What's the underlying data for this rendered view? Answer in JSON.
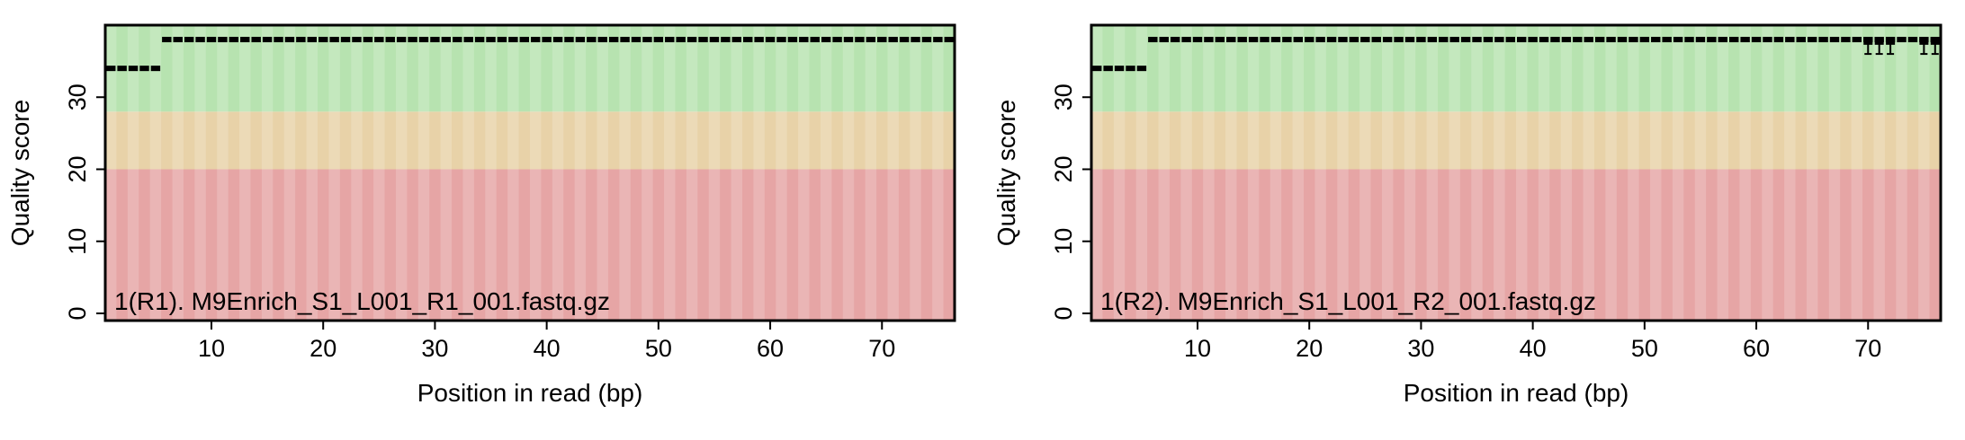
{
  "chart_data": [
    {
      "type": "box",
      "title": "1(R1). M9Enrich_S1_L001_R1_001.fastq.gz",
      "xlabel": "Position in read (bp)",
      "ylabel": "Quality score",
      "xlim": [
        0.5,
        76.5
      ],
      "ylim": [
        -1,
        40
      ],
      "xticks": [
        10,
        20,
        30,
        40,
        50,
        60,
        70
      ],
      "yticks": [
        0,
        10,
        20,
        30
      ],
      "bands": [
        {
          "from": 0,
          "to": 20,
          "color": "#e6a5a5"
        },
        {
          "from": 20,
          "to": 28,
          "color": "#e8d2a8"
        },
        {
          "from": 28,
          "to": 40,
          "color": "#b7e3b0"
        }
      ],
      "positions": {
        "start": 1,
        "end": 76
      },
      "median_segments": [
        {
          "from": 1,
          "to": 5,
          "value": 34
        },
        {
          "from": 6,
          "to": 76,
          "value": 38
        }
      ],
      "whiskers": []
    },
    {
      "type": "box",
      "title": "1(R2). M9Enrich_S1_L001_R2_001.fastq.gz",
      "xlabel": "Position in read (bp)",
      "ylabel": "Quality score",
      "xlim": [
        0.5,
        76.5
      ],
      "ylim": [
        -1,
        40
      ],
      "xticks": [
        10,
        20,
        30,
        40,
        50,
        60,
        70
      ],
      "yticks": [
        0,
        10,
        20,
        30
      ],
      "bands": [
        {
          "from": 0,
          "to": 20,
          "color": "#e6a5a5"
        },
        {
          "from": 20,
          "to": 28,
          "color": "#e8d2a8"
        },
        {
          "from": 28,
          "to": 40,
          "color": "#b7e3b0"
        }
      ],
      "positions": {
        "start": 1,
        "end": 76
      },
      "median_segments": [
        {
          "from": 1,
          "to": 5,
          "value": 34
        },
        {
          "from": 6,
          "to": 76,
          "value": 38
        }
      ],
      "whiskers": [
        {
          "positions": [
            70,
            71,
            72
          ],
          "low": 36,
          "high": 38
        },
        {
          "positions": [
            75,
            76
          ],
          "low": 36,
          "high": 38
        }
      ]
    }
  ]
}
